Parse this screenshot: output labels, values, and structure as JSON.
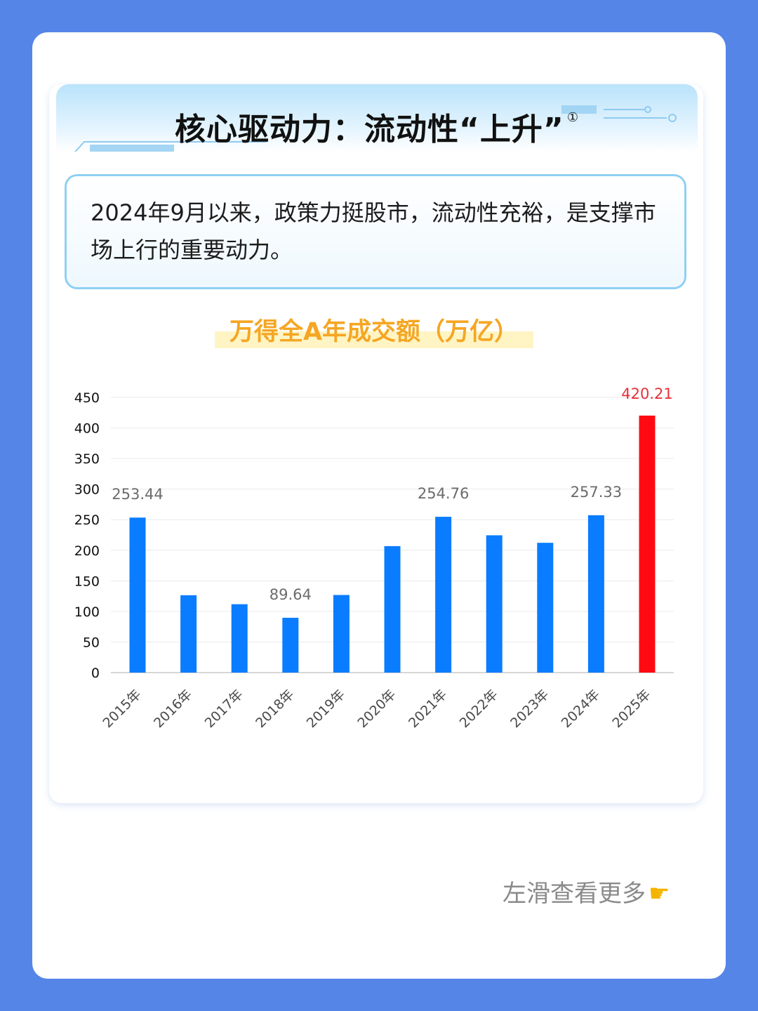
{
  "header": {
    "title": "核心驱动力：流动性“上升”",
    "footnote_mark": "①"
  },
  "intro": {
    "text": "2024年9月以来，政策力挺股市，流动性充裕，是支撑市场上行的重要动力。"
  },
  "chart_title": "万得全A年成交额（万亿）",
  "chart_data": {
    "type": "bar",
    "title": "万得全A年成交额（万亿）",
    "categories": [
      "2015年",
      "2016年",
      "2017年",
      "2018年",
      "2019年",
      "2020年",
      "2021年",
      "2022年",
      "2023年",
      "2024年",
      "2025年"
    ],
    "values": [
      253.44,
      126.5,
      111.8,
      89.64,
      126.9,
      206.8,
      254.76,
      224.5,
      212.2,
      257.33,
      420.21
    ],
    "data_labels": [
      "253.44",
      "",
      "",
      "89.64",
      "",
      "",
      "254.76",
      "",
      "",
      "257.33",
      "420.21"
    ],
    "bar_colors": [
      "#0a7cff",
      "#0a7cff",
      "#0a7cff",
      "#0a7cff",
      "#0a7cff",
      "#0a7cff",
      "#0a7cff",
      "#0a7cff",
      "#0a7cff",
      "#0a7cff",
      "#ff0a12"
    ],
    "yticks": [
      "0",
      "50",
      "100",
      "150",
      "200",
      "250",
      "300",
      "350",
      "400",
      "450"
    ],
    "ylim": [
      0,
      450
    ],
    "grid": true,
    "xlabel": "",
    "ylabel": ""
  },
  "colors": {
    "bar_default": "#0a7cff",
    "bar_highlight": "#ff0a12",
    "highlight_label": "#e8303a",
    "label": "#6b6b6b",
    "background": "#5685e8",
    "chart_title": "#f5a623"
  },
  "footer": {
    "swipe_text": "左滑查看更多",
    "swipe_icon": "pointing-hand-icon"
  }
}
